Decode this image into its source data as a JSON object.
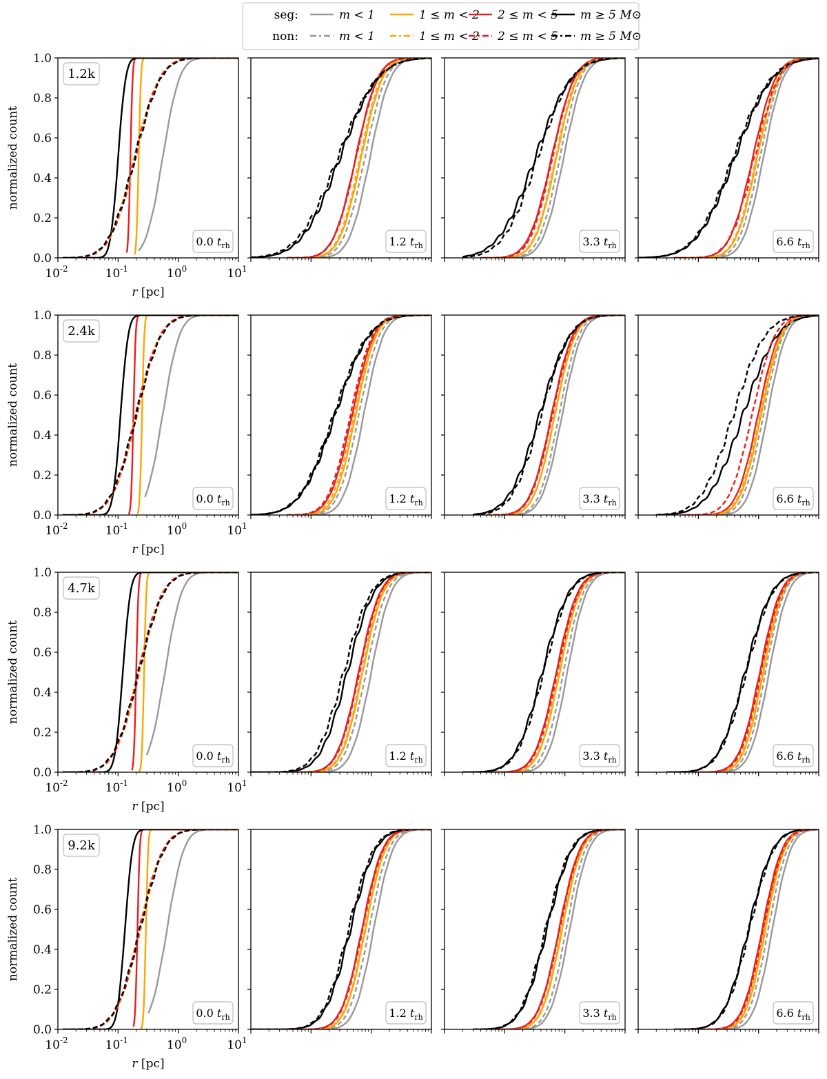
{
  "chart_data": {
    "type": "line",
    "layout": "grid",
    "title": "",
    "xlabel": "r [pc]",
    "ylabel": "normalized count",
    "x_scale": "log",
    "xlim": [
      0.01,
      10
    ],
    "ylim": [
      0,
      1.0
    ],
    "x_tick_values": [
      0.01,
      0.1,
      1,
      10
    ],
    "x_tick_labels": [
      [
        "10",
        "-2"
      ],
      [
        "10",
        "-1"
      ],
      [
        "10",
        "0"
      ],
      [
        "10",
        "1"
      ]
    ],
    "y_ticks": [
      0.0,
      0.2,
      0.4,
      0.6,
      0.8,
      1.0
    ],
    "y_tick_labels": [
      "0.0",
      "0.2",
      "0.4",
      "0.6",
      "0.8",
      "1.0"
    ],
    "legend": {
      "placement": "top-center",
      "rows": [
        {
          "label": "seg:",
          "style": "solid"
        },
        {
          "label": "non:",
          "style": "dashed"
        }
      ],
      "entries": [
        {
          "key": "m1",
          "label": "m < 1",
          "color": "#999999"
        },
        {
          "key": "m12",
          "label": "1 ≤ m < 2",
          "color": "#ffa500"
        },
        {
          "key": "m25",
          "label": "2 ≤ m < 5",
          "color": "#ee1c1c"
        },
        {
          "key": "m5",
          "label": "m ≥ 5 M⊙",
          "color": "#000000"
        }
      ]
    },
    "row_labels": [
      "1.2k",
      "2.4k",
      "4.7k",
      "9.2k"
    ],
    "time_labels": [
      {
        "value": "0.0",
        "unit": "t",
        "sub": "rh"
      },
      {
        "value": "1.2",
        "unit": "t",
        "sub": "rh"
      },
      {
        "value": "3.3",
        "unit": "t",
        "sub": "rh"
      },
      {
        "value": "6.6",
        "unit": "t",
        "sub": "rh"
      }
    ],
    "curve_model": "cumulative log-normal: median r (pc), width in decades, start r (pc)",
    "panels": [
      [
        {
          "time": "0.0",
          "seg": {
            "m1": [
              0.55,
              0.22,
              0.22
            ],
            "m12": [
              0.22,
              0.03,
              0.19
            ],
            "m25": [
              0.16,
              0.03,
              0.14
            ],
            "m5": [
              0.1,
              0.1,
              0.012
            ]
          },
          "non": {
            "m1": [
              0.19,
              0.33,
              0.012
            ],
            "m12": [
              0.19,
              0.33,
              0.012
            ],
            "m25": [
              0.19,
              0.33,
              0.012
            ],
            "m5": [
              0.19,
              0.34,
              0.012
            ]
          }
        },
        {
          "time": "1.2",
          "seg": {
            "m1": [
              0.95,
              0.27,
              0.08
            ],
            "m12": [
              0.68,
              0.28,
              0.05
            ],
            "m25": [
              0.55,
              0.29,
              0.04
            ],
            "m5": [
              0.3,
              0.5,
              0.01
            ]
          },
          "non": {
            "m1": [
              0.78,
              0.28,
              0.06
            ],
            "m12": [
              0.65,
              0.28,
              0.05
            ],
            "m25": [
              0.56,
              0.29,
              0.04
            ],
            "m5": [
              0.28,
              0.52,
              0.01
            ]
          }
        },
        {
          "time": "3.3",
          "seg": {
            "m1": [
              0.95,
              0.27,
              0.1
            ],
            "m12": [
              0.72,
              0.28,
              0.06
            ],
            "m25": [
              0.6,
              0.3,
              0.04
            ],
            "m5": [
              0.32,
              0.48,
              0.02
            ]
          },
          "non": {
            "m1": [
              0.82,
              0.27,
              0.08
            ],
            "m12": [
              0.7,
              0.28,
              0.06
            ],
            "m25": [
              0.62,
              0.29,
              0.05
            ],
            "m5": [
              0.35,
              0.45,
              0.02
            ]
          }
        },
        {
          "time": "6.6",
          "seg": {
            "m1": [
              1.2,
              0.26,
              0.12
            ],
            "m12": [
              0.95,
              0.28,
              0.06
            ],
            "m25": [
              0.8,
              0.3,
              0.04
            ],
            "m5": [
              0.4,
              0.5,
              0.01
            ]
          },
          "non": {
            "m1": [
              1.05,
              0.27,
              0.1
            ],
            "m12": [
              0.92,
              0.28,
              0.06
            ],
            "m25": [
              0.85,
              0.32,
              0.04
            ],
            "m5": [
              0.38,
              0.5,
              0.01
            ]
          }
        }
      ],
      [
        {
          "time": "0.0",
          "seg": {
            "m1": [
              0.55,
              0.22,
              0.28
            ],
            "m12": [
              0.25,
              0.03,
              0.21
            ],
            "m25": [
              0.18,
              0.03,
              0.15
            ],
            "m5": [
              0.11,
              0.1,
              0.012
            ]
          },
          "non": {
            "m1": [
              0.2,
              0.32,
              0.012
            ],
            "m12": [
              0.2,
              0.32,
              0.012
            ],
            "m25": [
              0.2,
              0.32,
              0.012
            ],
            "m5": [
              0.2,
              0.33,
              0.012
            ]
          }
        },
        {
          "time": "1.2",
          "seg": {
            "m1": [
              0.75,
              0.26,
              0.07
            ],
            "m12": [
              0.55,
              0.27,
              0.05
            ],
            "m25": [
              0.48,
              0.29,
              0.04
            ],
            "m5": [
              0.25,
              0.45,
              0.01
            ]
          },
          "non": {
            "m1": [
              0.62,
              0.27,
              0.06
            ],
            "m12": [
              0.52,
              0.28,
              0.05
            ],
            "m25": [
              0.45,
              0.29,
              0.04
            ],
            "m5": [
              0.24,
              0.45,
              0.01
            ]
          }
        },
        {
          "time": "3.3",
          "seg": {
            "m1": [
              0.9,
              0.26,
              0.08
            ],
            "m12": [
              0.68,
              0.27,
              0.06
            ],
            "m25": [
              0.6,
              0.28,
              0.05
            ],
            "m5": [
              0.38,
              0.4,
              0.03
            ]
          },
          "non": {
            "m1": [
              0.8,
              0.26,
              0.07
            ],
            "m12": [
              0.68,
              0.27,
              0.06
            ],
            "m25": [
              0.62,
              0.28,
              0.05
            ],
            "m5": [
              0.4,
              0.38,
              0.03
            ]
          }
        },
        {
          "time": "6.6",
          "seg": {
            "m1": [
              1.4,
              0.25,
              0.1
            ],
            "m12": [
              1.1,
              0.27,
              0.08
            ],
            "m25": [
              0.98,
              0.28,
              0.06
            ],
            "m5": [
              0.55,
              0.45,
              0.02
            ]
          },
          "non": {
            "m1": [
              1.2,
              0.26,
              0.09
            ],
            "m12": [
              1.05,
              0.27,
              0.07
            ],
            "m25": [
              0.78,
              0.3,
              0.05
            ],
            "m5": [
              0.38,
              0.42,
              0.02
            ]
          }
        }
      ],
      [
        {
          "time": "0.0",
          "seg": {
            "m1": [
              0.6,
              0.22,
              0.3
            ],
            "m12": [
              0.27,
              0.03,
              0.22
            ],
            "m25": [
              0.2,
              0.03,
              0.17
            ],
            "m5": [
              0.12,
              0.1,
              0.012
            ]
          },
          "non": {
            "m1": [
              0.22,
              0.32,
              0.012
            ],
            "m12": [
              0.22,
              0.32,
              0.012
            ],
            "m25": [
              0.22,
              0.32,
              0.012
            ],
            "m5": [
              0.22,
              0.33,
              0.012
            ]
          }
        },
        {
          "time": "1.2",
          "seg": {
            "m1": [
              1.0,
              0.26,
              0.1
            ],
            "m12": [
              0.72,
              0.27,
              0.06
            ],
            "m25": [
              0.62,
              0.28,
              0.05
            ],
            "m5": [
              0.4,
              0.35,
              0.01
            ]
          },
          "non": {
            "m1": [
              0.82,
              0.27,
              0.08
            ],
            "m12": [
              0.7,
              0.27,
              0.06
            ],
            "m25": [
              0.64,
              0.28,
              0.05
            ],
            "m5": [
              0.35,
              0.36,
              0.01
            ]
          }
        },
        {
          "time": "3.3",
          "seg": {
            "m1": [
              1.1,
              0.25,
              0.1
            ],
            "m12": [
              0.82,
              0.27,
              0.07
            ],
            "m25": [
              0.72,
              0.28,
              0.05
            ],
            "m5": [
              0.42,
              0.35,
              0.02
            ]
          },
          "non": {
            "m1": [
              0.95,
              0.26,
              0.09
            ],
            "m12": [
              0.8,
              0.27,
              0.07
            ],
            "m25": [
              0.75,
              0.28,
              0.05
            ],
            "m5": [
              0.44,
              0.35,
              0.02
            ]
          }
        },
        {
          "time": "6.6",
          "seg": {
            "m1": [
              1.5,
              0.25,
              0.12
            ],
            "m12": [
              1.2,
              0.26,
              0.08
            ],
            "m25": [
              1.05,
              0.27,
              0.06
            ],
            "m5": [
              0.6,
              0.35,
              0.03
            ]
          },
          "non": {
            "m1": [
              1.3,
              0.25,
              0.1
            ],
            "m12": [
              1.15,
              0.26,
              0.08
            ],
            "m25": [
              1.1,
              0.27,
              0.06
            ],
            "m5": [
              0.62,
              0.35,
              0.03
            ]
          }
        }
      ],
      [
        {
          "time": "0.0",
          "seg": {
            "m1": [
              0.65,
              0.22,
              0.32
            ],
            "m12": [
              0.29,
              0.03,
              0.24
            ],
            "m25": [
              0.21,
              0.03,
              0.18
            ],
            "m5": [
              0.13,
              0.1,
              0.012
            ]
          },
          "non": {
            "m1": [
              0.23,
              0.31,
              0.012
            ],
            "m12": [
              0.23,
              0.31,
              0.012
            ],
            "m25": [
              0.23,
              0.31,
              0.012
            ],
            "m5": [
              0.23,
              0.32,
              0.012
            ]
          }
        },
        {
          "time": "1.2",
          "seg": {
            "m1": [
              1.1,
              0.25,
              0.1
            ],
            "m12": [
              0.8,
              0.26,
              0.07
            ],
            "m25": [
              0.7,
              0.27,
              0.05
            ],
            "m5": [
              0.45,
              0.33,
              0.01
            ]
          },
          "non": {
            "m1": [
              0.92,
              0.26,
              0.09
            ],
            "m12": [
              0.78,
              0.26,
              0.07
            ],
            "m25": [
              0.72,
              0.27,
              0.05
            ],
            "m5": [
              0.42,
              0.33,
              0.01
            ]
          }
        },
        {
          "time": "3.3",
          "seg": {
            "m1": [
              1.2,
              0.25,
              0.1
            ],
            "m12": [
              0.9,
              0.26,
              0.08
            ],
            "m25": [
              0.8,
              0.27,
              0.06
            ],
            "m5": [
              0.5,
              0.33,
              0.03
            ]
          },
          "non": {
            "m1": [
              1.05,
              0.25,
              0.09
            ],
            "m12": [
              0.88,
              0.26,
              0.08
            ],
            "m25": [
              0.82,
              0.27,
              0.06
            ],
            "m5": [
              0.48,
              0.33,
              0.03
            ]
          }
        },
        {
          "time": "6.6",
          "seg": {
            "m1": [
              1.7,
              0.24,
              0.14
            ],
            "m12": [
              1.3,
              0.25,
              0.1
            ],
            "m25": [
              1.15,
              0.26,
              0.08
            ],
            "m5": [
              0.68,
              0.32,
              0.04
            ]
          },
          "non": {
            "m1": [
              1.45,
              0.25,
              0.12
            ],
            "m12": [
              1.25,
              0.25,
              0.1
            ],
            "m25": [
              1.2,
              0.26,
              0.08
            ],
            "m5": [
              0.7,
              0.32,
              0.04
            ]
          }
        }
      ]
    ]
  }
}
